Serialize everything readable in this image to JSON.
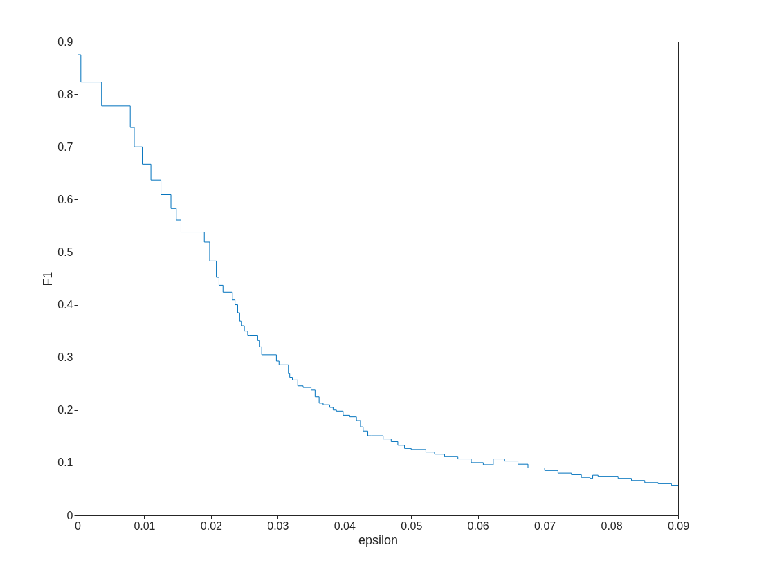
{
  "chart_data": {
    "type": "step",
    "xlabel": "epsilon",
    "ylabel": "F1",
    "xlim": [
      0,
      0.09
    ],
    "ylim": [
      0,
      0.9
    ],
    "xticks": [
      0,
      0.01,
      0.02,
      0.03,
      0.04,
      0.05,
      0.06,
      0.07,
      0.08,
      0.09
    ],
    "yticks": [
      0,
      0.1,
      0.2,
      0.3,
      0.4,
      0.5,
      0.6,
      0.7,
      0.8,
      0.9
    ],
    "grid": false,
    "series": [
      {
        "color": "#0072bd",
        "x": [
          0,
          0.0005,
          0.0036,
          0.0079,
          0.0085,
          0.0097,
          0.011,
          0.0125,
          0.014,
          0.0148,
          0.0155,
          0.019,
          0.0198,
          0.0208,
          0.0212,
          0.0218,
          0.0232,
          0.0236,
          0.024,
          0.0243,
          0.0246,
          0.025,
          0.0255,
          0.0258,
          0.027,
          0.0273,
          0.0276,
          0.0298,
          0.0302,
          0.0316,
          0.0318,
          0.0322,
          0.033,
          0.0338,
          0.035,
          0.0356,
          0.0362,
          0.0368,
          0.0378,
          0.0383,
          0.0388,
          0.0398,
          0.0408,
          0.0418,
          0.0424,
          0.0428,
          0.0435,
          0.044,
          0.0458,
          0.047,
          0.048,
          0.049,
          0.05,
          0.0522,
          0.0535,
          0.055,
          0.057,
          0.059,
          0.0608,
          0.0623,
          0.064,
          0.066,
          0.0675,
          0.07,
          0.072,
          0.074,
          0.0755,
          0.0768,
          0.0772,
          0.078,
          0.081,
          0.083,
          0.085,
          0.087,
          0.089,
          0.09
        ],
        "values": [
          0.875,
          0.823,
          0.778,
          0.737,
          0.7,
          0.667,
          0.637,
          0.609,
          0.583,
          0.561,
          0.538,
          0.519,
          0.483,
          0.452,
          0.437,
          0.424,
          0.409,
          0.4,
          0.385,
          0.369,
          0.36,
          0.35,
          0.341,
          0.341,
          0.332,
          0.32,
          0.305,
          0.293,
          0.286,
          0.27,
          0.262,
          0.257,
          0.246,
          0.243,
          0.238,
          0.225,
          0.213,
          0.21,
          0.205,
          0.2,
          0.198,
          0.19,
          0.187,
          0.18,
          0.168,
          0.16,
          0.151,
          0.151,
          0.145,
          0.14,
          0.133,
          0.127,
          0.125,
          0.12,
          0.116,
          0.112,
          0.107,
          0.1,
          0.096,
          0.107,
          0.103,
          0.097,
          0.09,
          0.085,
          0.08,
          0.077,
          0.072,
          0.07,
          0.076,
          0.074,
          0.07,
          0.066,
          0.062,
          0.06,
          0.057,
          0.057
        ]
      }
    ]
  }
}
